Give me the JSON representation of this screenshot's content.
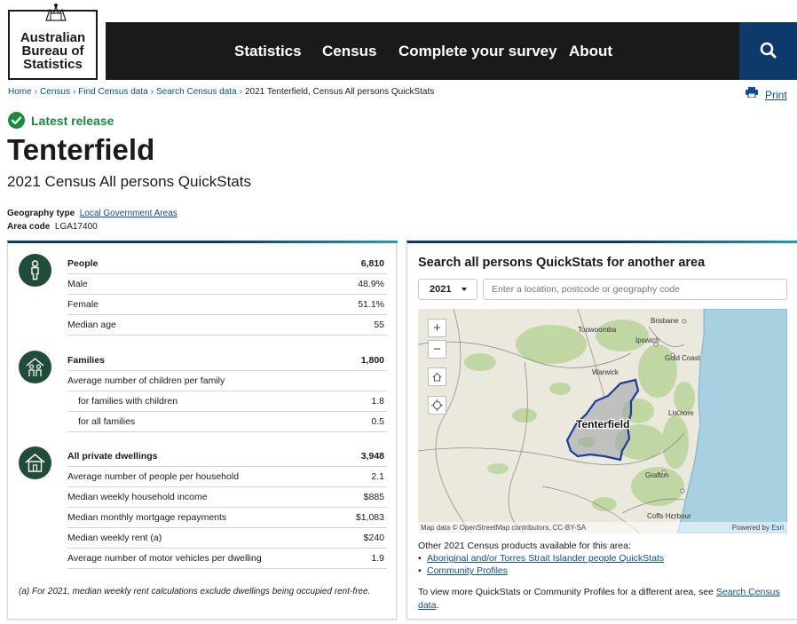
{
  "header": {
    "logo_lines": [
      "Australian",
      "Bureau of",
      "Statistics"
    ],
    "crest_text": "AUSTRALIA",
    "nav": [
      "Statistics",
      "Census",
      "Complete your survey",
      "About"
    ],
    "search_icon": "search-icon"
  },
  "breadcrumb": {
    "items": [
      "Home",
      "Census",
      "Find Census data",
      "Search Census data"
    ],
    "current": "2021 Tenterfield, Census All persons QuickStats"
  },
  "print_label": "Print",
  "status": {
    "label": "Latest release",
    "color": "#1a8a3d"
  },
  "page": {
    "title": "Tenterfield",
    "subtitle": "2021 Census All persons QuickStats",
    "geography_label": "Geography type",
    "geography_value": "Local Government Areas",
    "area_code_label": "Area code",
    "area_code_value": "LGA17400"
  },
  "people": {
    "icon": "person-icon",
    "rows": [
      {
        "label": "People",
        "value": "6,810"
      },
      {
        "label": "Male",
        "value": "48.9%"
      },
      {
        "label": "Female",
        "value": "51.1%"
      },
      {
        "label": "Median age",
        "value": "55"
      }
    ]
  },
  "families": {
    "icon": "family-icon",
    "rows": [
      {
        "label": "Families",
        "value": "1,800"
      },
      {
        "label": "Average number of children per family",
        "value": ""
      },
      {
        "label": "for families with children",
        "value": "1.8"
      },
      {
        "label": "for all families",
        "value": "0.5"
      }
    ]
  },
  "dwellings": {
    "icon": "house-icon",
    "rows": [
      {
        "label": "All private dwellings",
        "value": "3,948"
      },
      {
        "label": "Average number of people per household",
        "value": "2.1"
      },
      {
        "label": "Median weekly household income",
        "value": "$885"
      },
      {
        "label": "Median monthly mortgage repayments",
        "value": "$1,083"
      },
      {
        "label": "Median weekly rent (a)",
        "value": "$240"
      },
      {
        "label": "Average number of motor vehicles per dwelling",
        "value": "1.9"
      }
    ]
  },
  "footnote": "(a) For 2021, median weekly rent calculations exclude dwellings being occupied rent-free.",
  "search_panel": {
    "title": "Search all persons QuickStats for another area",
    "year": "2021",
    "placeholder": "Enter a location, postcode or geography code"
  },
  "map": {
    "labels": {
      "brisbane": "Brisbane",
      "toowoomba": "Toowoomba",
      "ipswich": "Ipswich",
      "gold_coast": "Gold Coast",
      "warwick": "Warwick",
      "lismore": "Lismore",
      "tenterfield": "Tenterfield",
      "grafton": "Grafton",
      "coffs_harbour": "Coffs Harbour"
    },
    "attribution": "Map data © OpenStreetMap contributors, CC-BY-SA",
    "powered_by": "Powered by",
    "esri": "Esri",
    "zoom_in": "+",
    "zoom_out": "−"
  },
  "other_products": {
    "intro": "Other 2021 Census products available for this area:",
    "links": [
      "Aboriginal and/or Torres Strait Islander people QuickStats",
      "Community Profiles"
    ]
  },
  "more_text": "To view more QuickStats or Community Profiles for a different area, see",
  "more_link": "Search Census data",
  "more_end": "."
}
